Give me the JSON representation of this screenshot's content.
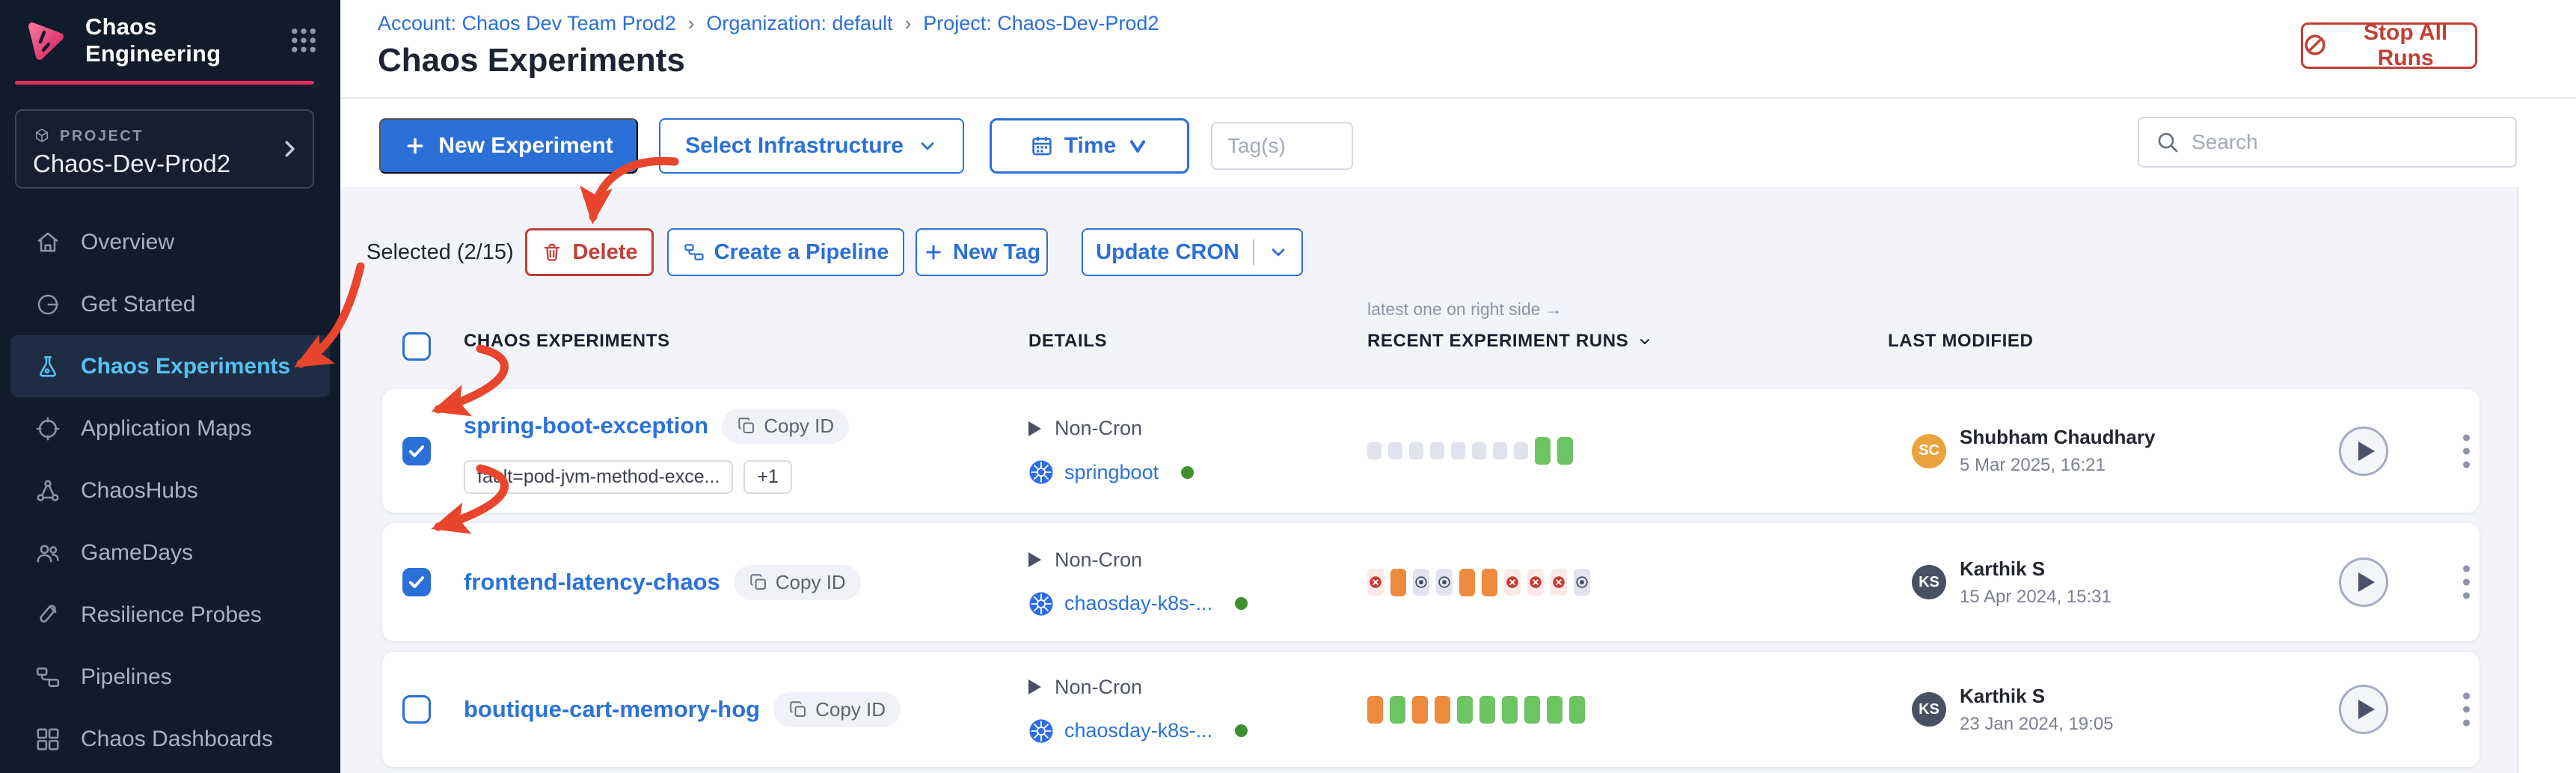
{
  "app": {
    "title": "Chaos Engineering"
  },
  "project": {
    "label": "PROJECT",
    "name": "Chaos-Dev-Prod2"
  },
  "sidebar": {
    "items": [
      {
        "label": "Overview",
        "icon": "home-icon",
        "active": false
      },
      {
        "label": "Get Started",
        "icon": "get-started-icon",
        "active": false
      },
      {
        "label": "Chaos Experiments",
        "icon": "flask-icon",
        "active": true
      },
      {
        "label": "Application Maps",
        "icon": "target-icon",
        "active": false
      },
      {
        "label": "ChaosHubs",
        "icon": "network-icon",
        "active": false
      },
      {
        "label": "GameDays",
        "icon": "people-icon",
        "active": false
      },
      {
        "label": "Resilience Probes",
        "icon": "test-tube-icon",
        "active": false
      },
      {
        "label": "Pipelines",
        "icon": "pipeline-icon",
        "active": false
      },
      {
        "label": "Chaos Dashboards",
        "icon": "dashboard-icon",
        "active": false
      }
    ]
  },
  "breadcrumb": {
    "separator": "›",
    "items": [
      "Account: Chaos Dev Team Prod2",
      "Organization: default",
      "Project: Chaos-Dev-Prod2"
    ]
  },
  "page": {
    "title": "Chaos Experiments"
  },
  "header_actions": {
    "stop_all_runs": "Stop All Runs",
    "stop_icon": "no-entry-icon"
  },
  "toolbar": {
    "new_experiment": "New Experiment",
    "select_infrastructure": "Select Infrastructure",
    "time": "Time",
    "time_icon": "calendar-icon",
    "tags_placeholder": "Tag(s)",
    "search_placeholder": "Search",
    "search_icon": "search-icon"
  },
  "selection_bar": {
    "summary": "Selected (2/15)",
    "delete": "Delete",
    "delete_icon": "trash-icon",
    "create_pipeline": "Create a Pipeline",
    "new_tag": "New Tag",
    "update_cron": "Update CRON"
  },
  "table": {
    "runs_note": "latest one on right side →",
    "headers": {
      "experiments": "CHAOS EXPERIMENTS",
      "details": "DETAILS",
      "recent_runs": "RECENT EXPERIMENT RUNS",
      "last_modified": "LAST MODIFIED"
    },
    "rows": [
      {
        "name": "spring-boot-exception",
        "checked": true,
        "copy_label": "Copy ID",
        "tags": [
          "fault=pod-jvm-method-exce...",
          "+1"
        ],
        "schedule": "Non-Cron",
        "infrastructure": "springboot",
        "infra_status_color": "#3F8F2E",
        "runs": [
          "empty",
          "empty",
          "empty",
          "empty",
          "empty",
          "empty",
          "empty",
          "empty",
          "passed",
          "passed"
        ],
        "modified": {
          "initials": "SC",
          "avatar_color": "#ECA33C",
          "name": "Shubham Chaudhary",
          "date": "5 Mar 2025, 16:21"
        }
      },
      {
        "name": "frontend-latency-chaos",
        "checked": true,
        "copy_label": "Copy ID",
        "tags": [],
        "schedule": "Non-Cron",
        "infrastructure": "chaosday-k8s-...",
        "infra_status_color": "#3F8F2E",
        "runs": [
          "failed",
          "warning",
          "stopped",
          "stopped",
          "warning",
          "warning",
          "failed",
          "failed",
          "failed",
          "stopped"
        ],
        "modified": {
          "initials": "KS",
          "avatar_color": "#4A5063",
          "name": "Karthik S",
          "date": "15 Apr 2024, 15:31"
        }
      },
      {
        "name": "boutique-cart-memory-hog",
        "checked": false,
        "copy_label": "Copy ID",
        "tags": [],
        "schedule": "Non-Cron",
        "infrastructure": "chaosday-k8s-...",
        "infra_status_color": "#3F8F2E",
        "runs": [
          "warning",
          "passed",
          "warning",
          "warning",
          "passed",
          "passed",
          "passed",
          "passed",
          "passed",
          "passed"
        ],
        "modified": {
          "initials": "KS",
          "avatar_color": "#4A5063",
          "name": "Karthik S",
          "date": "23 Jan 2024, 19:05"
        }
      }
    ]
  },
  "colors": {
    "accent_pink": "#EE2A62",
    "primary_blue": "#2B6FD8",
    "danger_red": "#C23F35",
    "annotation_red": "#E8452C",
    "run_passed": "#6CC462",
    "run_warning": "#ED8A3E",
    "run_failed": "#C63C33",
    "run_stopped": "#39435C",
    "run_empty": "#E0E2EC",
    "active_nav_blue": "#56C2F2"
  }
}
